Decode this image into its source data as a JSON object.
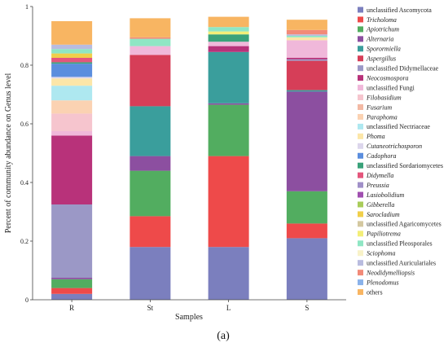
{
  "chart_data": {
    "type": "bar",
    "stacked": true,
    "caption": "(a)",
    "xlabel": "Samples",
    "ylabel": "Percent of community abundance on Genus level",
    "ylim": [
      0,
      1
    ],
    "yticks": [
      0,
      0.2,
      0.4,
      0.6,
      0.8,
      1
    ],
    "legend_position": "right",
    "categories": [
      "R",
      "St",
      "L",
      "S"
    ],
    "series": [
      {
        "name": "unclassified Ascomycota",
        "italic": false,
        "color": "#7b7fbe",
        "values": [
          0.02,
          0.18,
          0.18,
          0.21
        ]
      },
      {
        "name": "Tricholoma",
        "italic": true,
        "color": "#ee4a4a",
        "values": [
          0.02,
          0.105,
          0.31,
          0.05
        ]
      },
      {
        "name": "Apiotrichum",
        "italic": true,
        "color": "#52ad60",
        "values": [
          0.03,
          0.155,
          0.175,
          0.11
        ]
      },
      {
        "name": "Alternaria",
        "italic": true,
        "color": "#8c4fa0",
        "values": [
          0.005,
          0.05,
          0.005,
          0.34
        ]
      },
      {
        "name": "Sporormiella",
        "italic": true,
        "color": "#3a9e9c",
        "values": [
          0.0,
          0.17,
          0.175,
          0.005
        ]
      },
      {
        "name": "Aspergillus",
        "italic": true,
        "color": "#d63e58",
        "values": [
          0.0,
          0.175,
          0.0,
          0.1
        ]
      },
      {
        "name": "unclassified Didymellaceae",
        "italic": false,
        "color": "#9b98c6",
        "values": [
          0.25,
          0.0,
          0.0,
          0.005
        ]
      },
      {
        "name": "Neocosmospora",
        "italic": true,
        "color": "#b8327a",
        "values": [
          0.235,
          0.0,
          0.02,
          0.005
        ]
      },
      {
        "name": "unclassified Fungi",
        "italic": false,
        "color": "#f0b8da",
        "values": [
          0.015,
          0.03,
          0.015,
          0.06
        ]
      },
      {
        "name": "Filobasidium",
        "italic": true,
        "color": "#f6c5ce",
        "values": [
          0.06,
          0.0,
          0.0,
          0.0
        ]
      },
      {
        "name": "Fusarium",
        "italic": true,
        "color": "#f3b9a4",
        "values": [
          0.0,
          0.0,
          0.0,
          0.0
        ]
      },
      {
        "name": "Paraphoma",
        "italic": true,
        "color": "#fbd2b2",
        "values": [
          0.045,
          0.0,
          0.0,
          0.0
        ]
      },
      {
        "name": "unclassified Nectriaceae",
        "italic": false,
        "color": "#aee8f0",
        "values": [
          0.05,
          0.0,
          0.0,
          0.0
        ]
      },
      {
        "name": "Phoma",
        "italic": true,
        "color": "#fce6a8",
        "values": [
          0.025,
          0.0,
          0.0,
          0.01
        ]
      },
      {
        "name": "Cutaneotrichosporon",
        "italic": true,
        "color": "#dcd6ec",
        "values": [
          0.005,
          0.0,
          0.0,
          0.0
        ]
      },
      {
        "name": "Cadophora",
        "italic": true,
        "color": "#5b8ede",
        "values": [
          0.045,
          0.0,
          0.0,
          0.0
        ]
      },
      {
        "name": "unclassified Sordariomycetes",
        "italic": false,
        "color": "#3aa27a",
        "values": [
          0.005,
          0.0,
          0.025,
          0.0
        ]
      },
      {
        "name": "Didymella",
        "italic": true,
        "color": "#e4567c",
        "values": [
          0.015,
          0.0,
          0.0,
          0.0
        ]
      },
      {
        "name": "Preussia",
        "italic": true,
        "color": "#a090c8",
        "values": [
          0.0,
          0.0,
          0.0,
          0.0
        ]
      },
      {
        "name": "Lasiobolidium",
        "italic": true,
        "color": "#a04fb0",
        "values": [
          0.0,
          0.0,
          0.0,
          0.0
        ]
      },
      {
        "name": "Gibberella",
        "italic": true,
        "color": "#a9cc5a",
        "values": [
          0.0,
          0.0,
          0.0,
          0.0
        ]
      },
      {
        "name": "Sarocladium",
        "italic": true,
        "color": "#f0cf4a",
        "values": [
          0.015,
          0.0,
          0.0,
          0.0
        ]
      },
      {
        "name": "unclassified Agaricomycetes",
        "italic": false,
        "color": "#d4c8a0",
        "values": [
          0.0,
          0.0,
          0.0,
          0.0
        ]
      },
      {
        "name": "Papiliotrema",
        "italic": true,
        "color": "#f3ee78",
        "values": [
          0.0,
          0.0,
          0.01,
          0.0
        ]
      },
      {
        "name": "unclassified Pleosporales",
        "italic": false,
        "color": "#8fe6c4",
        "values": [
          0.015,
          0.025,
          0.015,
          0.005
        ]
      },
      {
        "name": "Sciophoma",
        "italic": true,
        "color": "#f8f2c8",
        "values": [
          0.0,
          0.0,
          0.0,
          0.0
        ]
      },
      {
        "name": "unclassified Auriculariales",
        "italic": false,
        "color": "#b9bcdf",
        "values": [
          0.015,
          0.0,
          0.0,
          0.005
        ]
      },
      {
        "name": "Neodidymelliopsis",
        "italic": true,
        "color": "#f28a78",
        "values": [
          0.0,
          0.005,
          0.0,
          0.015
        ]
      },
      {
        "name": "Plenodomus",
        "italic": true,
        "color": "#8ab2ea",
        "values": [
          0.0,
          0.0,
          0.0,
          0.0
        ]
      },
      {
        "name": "others",
        "italic": false,
        "color": "#f8b562",
        "values": [
          0.08,
          0.065,
          0.035,
          0.035
        ]
      }
    ]
  }
}
